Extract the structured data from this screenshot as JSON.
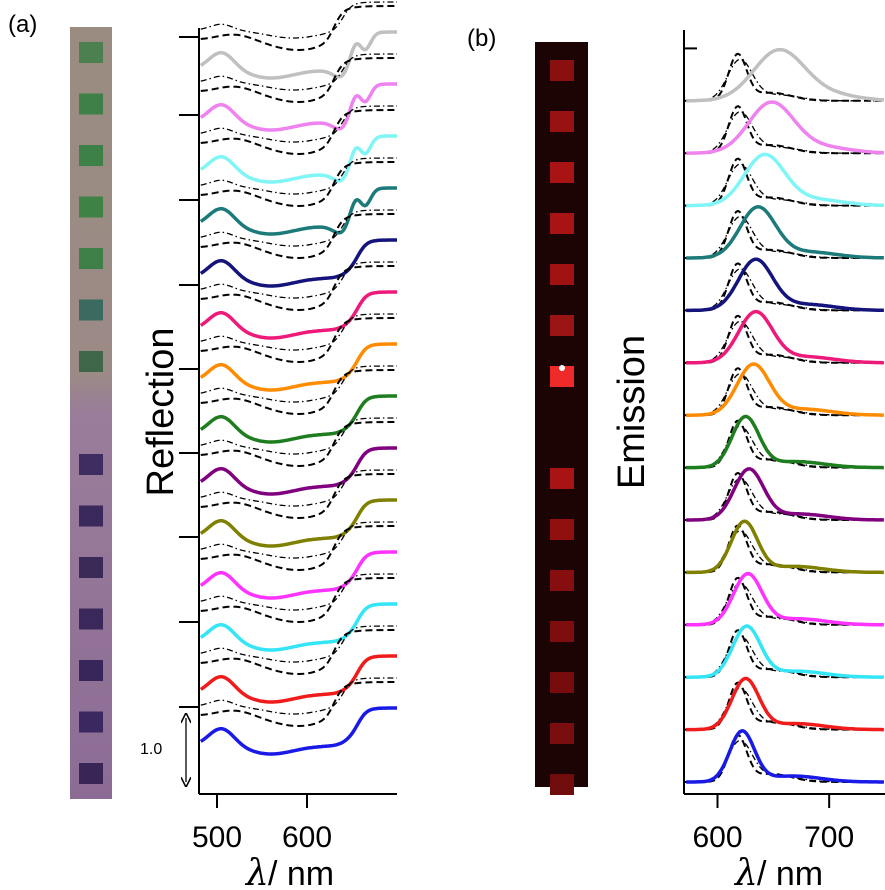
{
  "figure": {
    "panel_a_label": "(a)",
    "panel_b_label": "(b)",
    "scale_bar_label": "1.0",
    "x_unit_text": "/ nm",
    "x_symbol": "λ"
  },
  "chart_data": [
    {
      "type": "line",
      "panel": "(a)",
      "ylabel": "Reflection",
      "xlabel": "λ / nm",
      "xlim": [
        480,
        700
      ],
      "xticks": [
        500,
        600
      ],
      "stacked_offset": 1.0,
      "series_colors": [
        "#c0c0c0",
        "#ee82ee",
        "#7ff5f5",
        "#1c7a7a",
        "#14147c",
        "#ee1a7a",
        "#ff8c00",
        "#1e7d1e",
        "#800080",
        "#808000",
        "#ff33ff",
        "#33e5f5",
        "#f01c1c",
        "#1a1ae6"
      ],
      "reference_line_style": "black dashed / dash-dot",
      "note": "14 stacked measured reflection spectra (colored) with dashed and dash-dot simulated curves; reflectance dips near 620-650 nm."
    },
    {
      "type": "line",
      "panel": "(b)",
      "ylabel": "Emission",
      "xlabel": "λ / nm",
      "xlim": [
        570,
        750
      ],
      "xticks": [
        600,
        700
      ],
      "series_peaks_nm": [
        655,
        648,
        642,
        636,
        634,
        634,
        632,
        625,
        628,
        624,
        627,
        626,
        625,
        622
      ],
      "series_colors": [
        "#c0c0c0",
        "#ee82ee",
        "#7ff5f5",
        "#1c7a7a",
        "#14147c",
        "#ee1a7a",
        "#ff8c00",
        "#1e7d1e",
        "#800080",
        "#808000",
        "#ff33ff",
        "#33e5f5",
        "#f01c1c",
        "#1a1ae6"
      ],
      "reference_line_style": "black dashed / dash-dot",
      "reference_peak_nm": 618,
      "note": "14 stacked emission spectra (colored) with dashed and dash-dot reference spectra; peaks between ~622 and ~655 nm."
    }
  ]
}
